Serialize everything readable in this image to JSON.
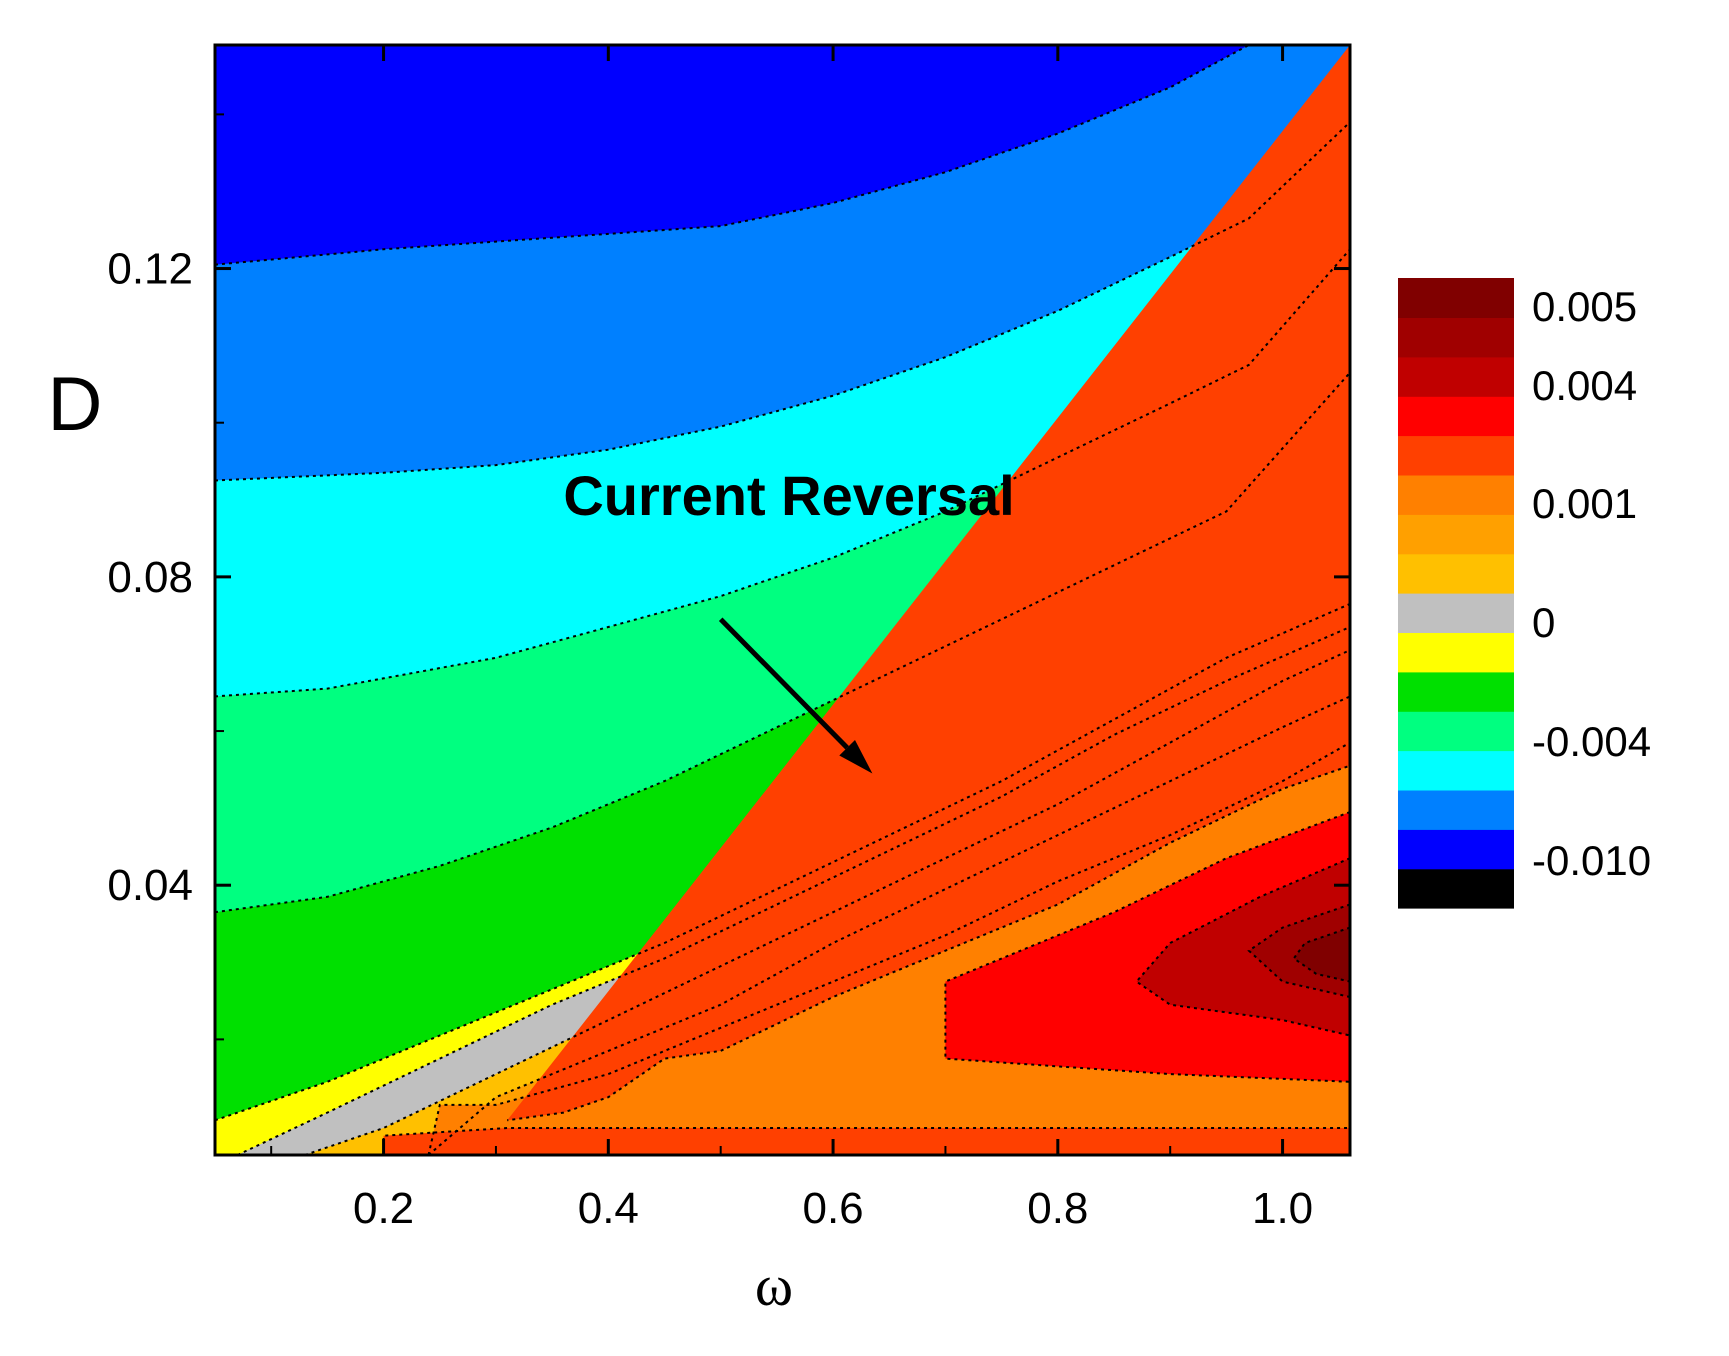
{
  "chart_data": {
    "type": "contour",
    "xlabel": "ω",
    "ylabel": "D",
    "xlim": [
      0.05,
      1.06
    ],
    "ylim": [
      0.005,
      0.149
    ],
    "x_ticks": [
      0.2,
      0.4,
      0.6,
      0.8,
      1.0
    ],
    "x_tick_labels": [
      "0.2",
      "0.4",
      "0.6",
      "0.8",
      "1.0"
    ],
    "y_ticks": [
      0.04,
      0.08,
      0.12
    ],
    "y_tick_labels": [
      "0.04",
      "0.08",
      "0.12"
    ],
    "annotation": {
      "text": "Current Reversal",
      "text_at": [
        0.36,
        0.088
      ],
      "arrow_from": [
        0.5,
        0.0745
      ],
      "arrow_to": [
        0.635,
        0.0545
      ]
    },
    "colorbar": {
      "colors": [
        "#000000",
        "#0000ff",
        "#0080ff",
        "#00ffff",
        "#00ff80",
        "#00e000",
        "#ffff00",
        "#c0c0c0",
        "#ffc000",
        "#ffa000",
        "#ff8000",
        "#ff4000",
        "#ff0000",
        "#c00000",
        "#a00000",
        "#800000"
      ],
      "labels": [
        "-0.010",
        "-0.004",
        "0",
        "0.001",
        "0.004",
        "0.005"
      ],
      "label_levels": [
        -0.01,
        -0.004,
        0,
        0.001,
        0.004,
        0.005
      ]
    },
    "regions": [
      {
        "color": "#0000ff",
        "level": -0.009,
        "bound_upper": [
          [
            0.05,
            0.149
          ],
          [
            1.06,
            0.149
          ]
        ]
      },
      {
        "color": "#0080ff",
        "level": -0.007,
        "bound_upper": [
          [
            0.05,
            0.1205
          ],
          [
            0.2,
            0.1225
          ],
          [
            0.3,
            0.1235
          ],
          [
            0.4,
            0.1245
          ],
          [
            0.5,
            0.1255
          ],
          [
            0.6,
            0.1285
          ],
          [
            0.7,
            0.1325
          ],
          [
            0.8,
            0.1375
          ],
          [
            0.9,
            0.1435
          ],
          [
            0.97,
            0.149
          ]
        ]
      },
      {
        "color": "#00ffff",
        "level": -0.005,
        "bound_upper": [
          [
            0.05,
            0.0925
          ],
          [
            0.2,
            0.0935
          ],
          [
            0.3,
            0.0945
          ],
          [
            0.4,
            0.0965
          ],
          [
            0.5,
            0.0995
          ],
          [
            0.6,
            0.1035
          ],
          [
            0.7,
            0.1085
          ],
          [
            0.8,
            0.1145
          ],
          [
            0.9,
            0.1215
          ],
          [
            0.97,
            0.1265
          ],
          [
            1.06,
            0.139
          ]
        ]
      },
      {
        "color": "#00ff80",
        "level": -0.004,
        "bound_upper": [
          [
            0.05,
            0.0645
          ],
          [
            0.15,
            0.0655
          ],
          [
            0.3,
            0.0695
          ],
          [
            0.4,
            0.0735
          ],
          [
            0.5,
            0.0775
          ],
          [
            0.6,
            0.0825
          ],
          [
            0.7,
            0.0885
          ],
          [
            0.8,
            0.0955
          ],
          [
            0.9,
            0.1025
          ],
          [
            0.97,
            0.1075
          ],
          [
            1.06,
            0.1225
          ]
        ]
      },
      {
        "color": "#00e000",
        "level": -0.002,
        "bound_upper": [
          [
            0.05,
            0.0365
          ],
          [
            0.15,
            0.0385
          ],
          [
            0.25,
            0.0425
          ],
          [
            0.35,
            0.0475
          ],
          [
            0.45,
            0.0535
          ],
          [
            0.55,
            0.0605
          ],
          [
            0.65,
            0.0675
          ],
          [
            0.75,
            0.0745
          ],
          [
            0.85,
            0.0815
          ],
          [
            0.95,
            0.0885
          ],
          [
            1.06,
            0.1065
          ]
        ]
      },
      {
        "color": "#ffff00",
        "level": -0.0002,
        "bound_upper": [
          [
            0.05,
            0.0095
          ],
          [
            0.15,
            0.0145
          ],
          [
            0.25,
            0.0205
          ],
          [
            0.35,
            0.0265
          ],
          [
            0.45,
            0.0325
          ],
          [
            0.55,
            0.0395
          ],
          [
            0.65,
            0.0465
          ],
          [
            0.75,
            0.0535
          ],
          [
            0.85,
            0.0615
          ],
          [
            0.95,
            0.0695
          ],
          [
            1.06,
            0.0765
          ]
        ]
      },
      {
        "color": "#c0c0c0",
        "level": 0,
        "bound_upper": [
          [
            0.07,
            0.005
          ],
          [
            0.15,
            0.0105
          ],
          [
            0.25,
            0.0175
          ],
          [
            0.35,
            0.0245
          ],
          [
            0.45,
            0.0305
          ],
          [
            0.55,
            0.0375
          ],
          [
            0.65,
            0.0445
          ],
          [
            0.75,
            0.0515
          ],
          [
            0.85,
            0.0595
          ],
          [
            0.95,
            0.0665
          ],
          [
            1.06,
            0.0735
          ]
        ]
      },
      {
        "color": "#ffc000",
        "level": 0.0005,
        "bound_upper": [
          [
            0.13,
            0.005
          ],
          [
            0.2,
            0.0085
          ],
          [
            0.3,
            0.0155
          ],
          [
            0.4,
            0.0225
          ],
          [
            0.5,
            0.0295
          ],
          [
            0.6,
            0.0365
          ],
          [
            0.7,
            0.0435
          ],
          [
            0.8,
            0.0505
          ],
          [
            0.9,
            0.0585
          ],
          [
            1.0,
            0.0665
          ],
          [
            1.06,
            0.0705
          ]
        ]
      },
      {
        "color": "#ffa000",
        "level": 0.0008,
        "bound_upper": [
          [
            0.24,
            0.005
          ],
          [
            0.3,
            0.0125
          ],
          [
            0.4,
            0.0185
          ],
          [
            0.5,
            0.0245
          ],
          [
            0.6,
            0.0325
          ],
          [
            0.7,
            0.0395
          ],
          [
            0.8,
            0.0465
          ],
          [
            0.9,
            0.0535
          ],
          [
            1.0,
            0.0605
          ],
          [
            1.06,
            0.0645
          ]
        ]
      },
      {
        "color": "#ff8000",
        "level": 0.0015,
        "bound_upper": [
          [
            0.24,
            0.005
          ],
          [
            0.25,
            0.0115
          ],
          [
            0.3,
            0.0115
          ],
          [
            0.4,
            0.0155
          ],
          [
            0.5,
            0.0215
          ],
          [
            0.6,
            0.0275
          ],
          [
            0.7,
            0.0335
          ],
          [
            0.8,
            0.0405
          ],
          [
            0.9,
            0.0465
          ],
          [
            1.0,
            0.0535
          ],
          [
            1.06,
            0.0585
          ]
        ]
      },
      {
        "color": "#ff4000",
        "level": 0.0025,
        "bound_upper": [
          [
            0.2,
            0.005
          ],
          [
            0.2,
            0.0075
          ],
          [
            0.31,
            0.0085
          ],
          [
            0.45,
            0.0085
          ],
          [
            0.6,
            0.0085
          ],
          [
            0.75,
            0.0085
          ],
          [
            0.9,
            0.0085
          ],
          [
            1.06,
            0.0085
          ],
          [
            1.06,
            0.0555
          ],
          [
            1.0,
            0.0525
          ],
          [
            0.9,
            0.0455
          ],
          [
            0.8,
            0.0375
          ],
          [
            0.7,
            0.0315
          ],
          [
            0.6,
            0.0255
          ],
          [
            0.5,
            0.0185
          ],
          [
            0.45,
            0.0175
          ],
          [
            0.4,
            0.0125
          ],
          [
            0.36,
            0.0105
          ],
          [
            0.31,
            0.0095
          ]
        ]
      },
      {
        "color": "#ff0000",
        "level": 0.0035,
        "polygon": [
          [
            1.06,
            0.0495
          ],
          [
            0.95,
            0.0435
          ],
          [
            0.85,
            0.0365
          ],
          [
            0.7,
            0.0275
          ],
          [
            0.7,
            0.0175
          ],
          [
            0.8,
            0.0165
          ],
          [
            0.9,
            0.0155
          ],
          [
            1.06,
            0.0145
          ]
        ]
      },
      {
        "color": "#c00000",
        "level": 0.0043,
        "polygon": [
          [
            1.06,
            0.0435
          ],
          [
            0.98,
            0.0385
          ],
          [
            0.9,
            0.0325
          ],
          [
            0.87,
            0.0275
          ],
          [
            0.9,
            0.0245
          ],
          [
            1.0,
            0.0225
          ],
          [
            1.06,
            0.0205
          ]
        ]
      },
      {
        "color": "#a00000",
        "level": 0.0047,
        "polygon": [
          [
            1.06,
            0.0375
          ],
          [
            1.0,
            0.0345
          ],
          [
            0.97,
            0.0315
          ],
          [
            1.0,
            0.0275
          ],
          [
            1.06,
            0.0255
          ]
        ]
      },
      {
        "color": "#800000",
        "level": 0.0052,
        "polygon": [
          [
            1.06,
            0.0345
          ],
          [
            1.02,
            0.0325
          ],
          [
            1.01,
            0.0305
          ],
          [
            1.03,
            0.0285
          ],
          [
            1.06,
            0.0275
          ]
        ]
      }
    ],
    "grid": false
  }
}
